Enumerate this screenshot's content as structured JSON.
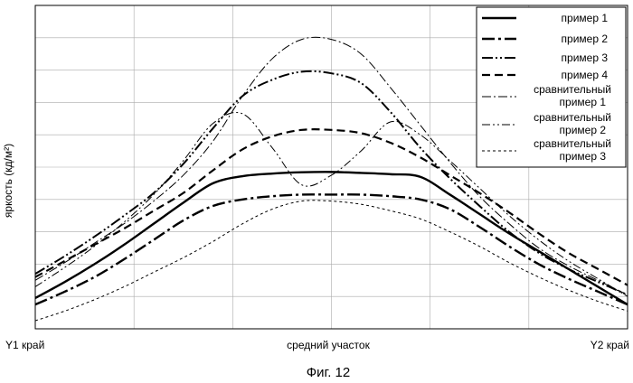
{
  "chart_data": {
    "type": "line",
    "ylabel": "яркость (кд/м²)",
    "caption": "Фиг. 12",
    "x_tick_labels": [
      "Y1 край",
      "средний участок",
      "Y2 край"
    ],
    "x": [
      0,
      0.05,
      0.1,
      0.15,
      0.2,
      0.25,
      0.3,
      0.35,
      0.4,
      0.45,
      0.5,
      0.55,
      0.6,
      0.65,
      0.7,
      0.75,
      0.8,
      0.85,
      0.9,
      0.95,
      1.0
    ],
    "xlim": [
      0,
      1
    ],
    "ylim": [
      0,
      10
    ],
    "grid": true,
    "legend_position": "top-right",
    "series": [
      {
        "name": "пример 1",
        "style": "solid-thick",
        "values": [
          0.95,
          1.45,
          2.0,
          2.6,
          3.25,
          3.9,
          4.5,
          4.72,
          4.8,
          4.84,
          4.85,
          4.82,
          4.78,
          4.7,
          4.15,
          3.55,
          2.95,
          2.4,
          1.85,
          1.3,
          0.75
        ]
      },
      {
        "name": "пример 2",
        "style": "dashdot-thick",
        "values": [
          0.75,
          1.15,
          1.6,
          2.15,
          2.75,
          3.35,
          3.8,
          4.0,
          4.1,
          4.15,
          4.15,
          4.15,
          4.1,
          4.0,
          3.7,
          3.15,
          2.55,
          2.0,
          1.55,
          1.15,
          0.75
        ]
      },
      {
        "name": "пример 3",
        "style": "dashdotdot-thick",
        "values": [
          1.7,
          2.25,
          2.85,
          3.5,
          4.2,
          5.1,
          6.2,
          7.2,
          7.7,
          7.95,
          7.9,
          7.6,
          6.7,
          5.6,
          4.65,
          3.8,
          3.0,
          2.35,
          1.85,
          1.45,
          1.05
        ]
      },
      {
        "name": "пример 4",
        "style": "dashed-thick",
        "values": [
          1.6,
          2.1,
          2.6,
          3.1,
          3.65,
          4.2,
          4.9,
          5.55,
          5.95,
          6.15,
          6.15,
          6.05,
          5.75,
          5.3,
          4.75,
          4.2,
          3.6,
          2.95,
          2.35,
          1.85,
          1.35
        ]
      },
      {
        "name": "сравнительный пример 1",
        "style": "dashdot-thin",
        "values": [
          1.5,
          2.05,
          2.65,
          3.25,
          3.95,
          4.75,
          5.8,
          7.2,
          8.35,
          8.95,
          8.95,
          8.5,
          7.45,
          6.3,
          5.15,
          4.1,
          3.25,
          2.5,
          1.95,
          1.5,
          1.05
        ]
      },
      {
        "name": "сравнительный пример 2",
        "style": "dashdotdot-thin",
        "values": [
          1.3,
          1.9,
          2.55,
          3.3,
          4.15,
          5.2,
          6.35,
          6.65,
          5.6,
          4.45,
          4.75,
          5.5,
          6.4,
          6.0,
          5.2,
          4.35,
          3.5,
          2.75,
          2.1,
          1.55,
          1.0
        ]
      },
      {
        "name": "сравнительный пример 3",
        "style": "dotted-thin",
        "values": [
          0.25,
          0.55,
          0.9,
          1.3,
          1.75,
          2.2,
          2.7,
          3.25,
          3.7,
          3.95,
          3.95,
          3.85,
          3.65,
          3.4,
          3.0,
          2.55,
          2.05,
          1.6,
          1.2,
          0.85,
          0.55
        ]
      }
    ]
  }
}
